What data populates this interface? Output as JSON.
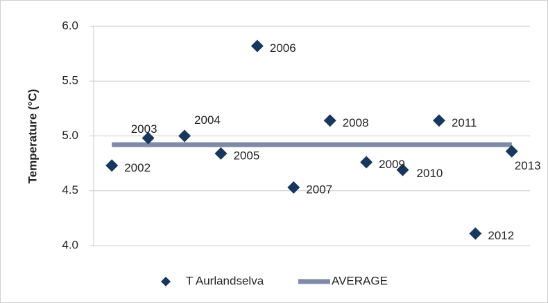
{
  "chart_data": {
    "type": "scatter",
    "y_label": "Temperature (°C)",
    "categories": [
      "2002",
      "2003",
      "2004",
      "2005",
      "2006",
      "2007",
      "2008",
      "2009",
      "2010",
      "2011",
      "2012",
      "2013"
    ],
    "series": [
      {
        "name": "T Aurlandselva",
        "color": "#17375e",
        "values": [
          4.73,
          4.98,
          5.0,
          4.84,
          5.82,
          4.53,
          5.14,
          4.76,
          4.69,
          5.14,
          4.11,
          4.86
        ]
      },
      {
        "name": "AVERAGE",
        "color": "#7f8aa6",
        "values": [
          4.92,
          4.92,
          4.92,
          4.92,
          4.92,
          4.92,
          4.92,
          4.92,
          4.92,
          4.92,
          4.92,
          4.92
        ]
      }
    ],
    "ylim": [
      4.0,
      6.0
    ],
    "yticks": [
      {
        "value": 4.0,
        "label": "4.0"
      },
      {
        "value": 4.5,
        "label": "4.5"
      },
      {
        "value": 5.0,
        "label": "5.0"
      },
      {
        "value": 5.5,
        "label": "5.5"
      },
      {
        "value": 6.0,
        "label": "6.0"
      }
    ],
    "grid": true
  }
}
